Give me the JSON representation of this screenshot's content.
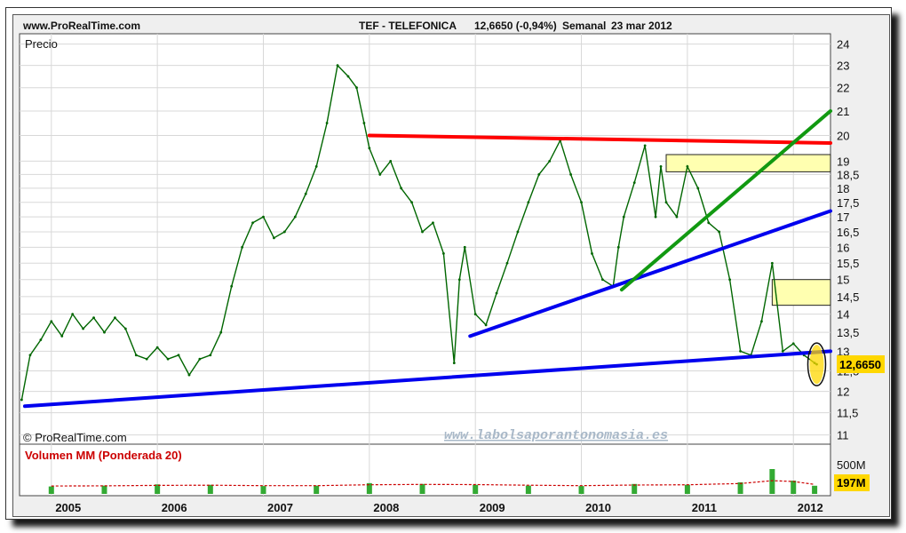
{
  "header": {
    "site": "www.ProRealTime.com",
    "instrument": "TEF - TELEFONICA",
    "quote": "12,6650 (-0,94%)",
    "period": "Semanal",
    "date": "23 mar 2012"
  },
  "panels": {
    "price_title": "Precio",
    "copyright": "© ProRealTime.com",
    "watermark": "www.labolsaporantonomasia.es",
    "volume_title": "Volumen MM (Ponderada 20)",
    "volume_max_label": "500M",
    "volume_current_label": "197M",
    "price_current_label": "12,6650"
  },
  "colors": {
    "background": "#efefef",
    "price_line": "#006600",
    "resistance": "#ff0000",
    "support": "#0000ee",
    "uptrend": "#119911",
    "zone_fill": "#ffffb0",
    "volume_bar": "#33aa33",
    "volume_ma": "#cc0000",
    "current_highlight": "#ffd700"
  },
  "chart_data": [
    {
      "type": "line",
      "title": "Precio",
      "y_scale": "log",
      "ylim": [
        10.8,
        24.5
      ],
      "y_ticks": [
        "24",
        "23",
        "22",
        "21",
        "20",
        "19",
        "18,5",
        "18",
        "17,5",
        "17",
        "16,5",
        "16",
        "15,5",
        "15",
        "14,5",
        "14",
        "13,5",
        "13",
        "12,5",
        "12",
        "11,5",
        "11"
      ],
      "y_tick_values": [
        24,
        23,
        22,
        21,
        20,
        19,
        18.5,
        18,
        17.5,
        17,
        16.5,
        16,
        15.5,
        15,
        14.5,
        14,
        13.5,
        13,
        12.5,
        12,
        11.5,
        11
      ],
      "x_ticks": [
        "2005",
        "2006",
        "2007",
        "2008",
        "2009",
        "2010",
        "2011",
        "2012"
      ],
      "x_tick_values": [
        2005,
        2006,
        2007,
        2008,
        2009,
        2010,
        2011,
        2012
      ],
      "xlim": [
        2004.7,
        2012.35
      ],
      "series": [
        {
          "x": [
            2004.72,
            2004.8,
            2004.9,
            2005.0,
            2005.1,
            2005.2,
            2005.3,
            2005.4,
            2005.5,
            2005.6,
            2005.7,
            2005.8,
            2005.9,
            2006.0,
            2006.1,
            2006.2,
            2006.3,
            2006.4,
            2006.5,
            2006.6,
            2006.7,
            2006.8,
            2006.9,
            2007.0,
            2007.1,
            2007.2,
            2007.3,
            2007.4,
            2007.5,
            2007.6,
            2007.7,
            2007.8,
            2007.88,
            2007.95,
            2008.0,
            2008.1,
            2008.2,
            2008.3,
            2008.4,
            2008.5,
            2008.6,
            2008.7,
            2008.8,
            2008.85,
            2008.9,
            2009.0,
            2009.1,
            2009.2,
            2009.3,
            2009.4,
            2009.5,
            2009.6,
            2009.7,
            2009.8,
            2009.9,
            2010.0,
            2010.1,
            2010.2,
            2010.3,
            2010.35,
            2010.4,
            2010.5,
            2010.6,
            2010.7,
            2010.75,
            2010.8,
            2010.9,
            2011.0,
            2011.1,
            2011.2,
            2011.3,
            2011.4,
            2011.5,
            2011.6,
            2011.7,
            2011.8,
            2011.9,
            2012.0,
            2012.1,
            2012.2,
            2012.22
          ],
          "values": [
            11.8,
            12.9,
            13.3,
            13.8,
            13.4,
            14.0,
            13.6,
            13.9,
            13.5,
            13.9,
            13.6,
            12.9,
            12.8,
            13.1,
            12.8,
            12.9,
            12.4,
            12.8,
            12.9,
            13.5,
            14.8,
            16.0,
            16.8,
            17.0,
            16.3,
            16.5,
            17.0,
            17.8,
            18.8,
            20.5,
            23.0,
            22.5,
            22.0,
            20.5,
            19.5,
            18.5,
            19.0,
            18.0,
            17.5,
            16.5,
            16.8,
            15.8,
            12.7,
            15.0,
            16.0,
            14.0,
            13.7,
            14.6,
            15.5,
            16.5,
            17.5,
            18.5,
            19.0,
            19.8,
            18.5,
            17.5,
            15.8,
            15.0,
            14.8,
            16.0,
            17.0,
            18.2,
            19.6,
            17.0,
            18.8,
            17.5,
            17.0,
            18.8,
            18.0,
            16.8,
            16.5,
            15.0,
            13.0,
            12.9,
            13.8,
            15.5,
            13.0,
            13.2,
            12.9,
            12.7,
            12.665
          ]
        }
      ],
      "annotations": [
        {
          "type": "trendline",
          "color": "red",
          "from": [
            2008.0,
            20.0
          ],
          "to": [
            2012.35,
            19.7
          ]
        },
        {
          "type": "trendline",
          "color": "blue",
          "from": [
            2004.75,
            11.65
          ],
          "to": [
            2012.35,
            13.0
          ]
        },
        {
          "type": "trendline",
          "color": "blue",
          "from": [
            2008.95,
            13.4
          ],
          "to": [
            2012.35,
            17.2
          ]
        },
        {
          "type": "trendline",
          "color": "green",
          "from": [
            2010.38,
            14.7
          ],
          "to": [
            2012.35,
            21.0
          ]
        },
        {
          "type": "zone",
          "from_x": 2010.8,
          "to_x": 2012.35,
          "y_range": [
            18.6,
            19.25
          ]
        },
        {
          "type": "zone",
          "from_x": 2011.8,
          "to_x": 2012.35,
          "y_range": [
            14.25,
            15.0
          ]
        }
      ]
    },
    {
      "type": "bar",
      "title": "Volumen MM (Ponderada 20)",
      "y_ticks": [
        "500M"
      ],
      "current_value": "197M",
      "ylim": [
        0,
        900
      ],
      "x": [
        2005.0,
        2005.5,
        2006.0,
        2006.5,
        2007.0,
        2007.5,
        2008.0,
        2008.5,
        2009.0,
        2009.5,
        2010.0,
        2010.5,
        2011.0,
        2011.5,
        2011.8,
        2012.0,
        2012.2
      ],
      "values": [
        180,
        200,
        230,
        220,
        190,
        200,
        260,
        240,
        220,
        200,
        190,
        240,
        220,
        280,
        600,
        320,
        197
      ],
      "moving_average": [
        190,
        195,
        205,
        210,
        200,
        200,
        220,
        230,
        225,
        210,
        200,
        215,
        220,
        250,
        320,
        300,
        230
      ]
    }
  ]
}
